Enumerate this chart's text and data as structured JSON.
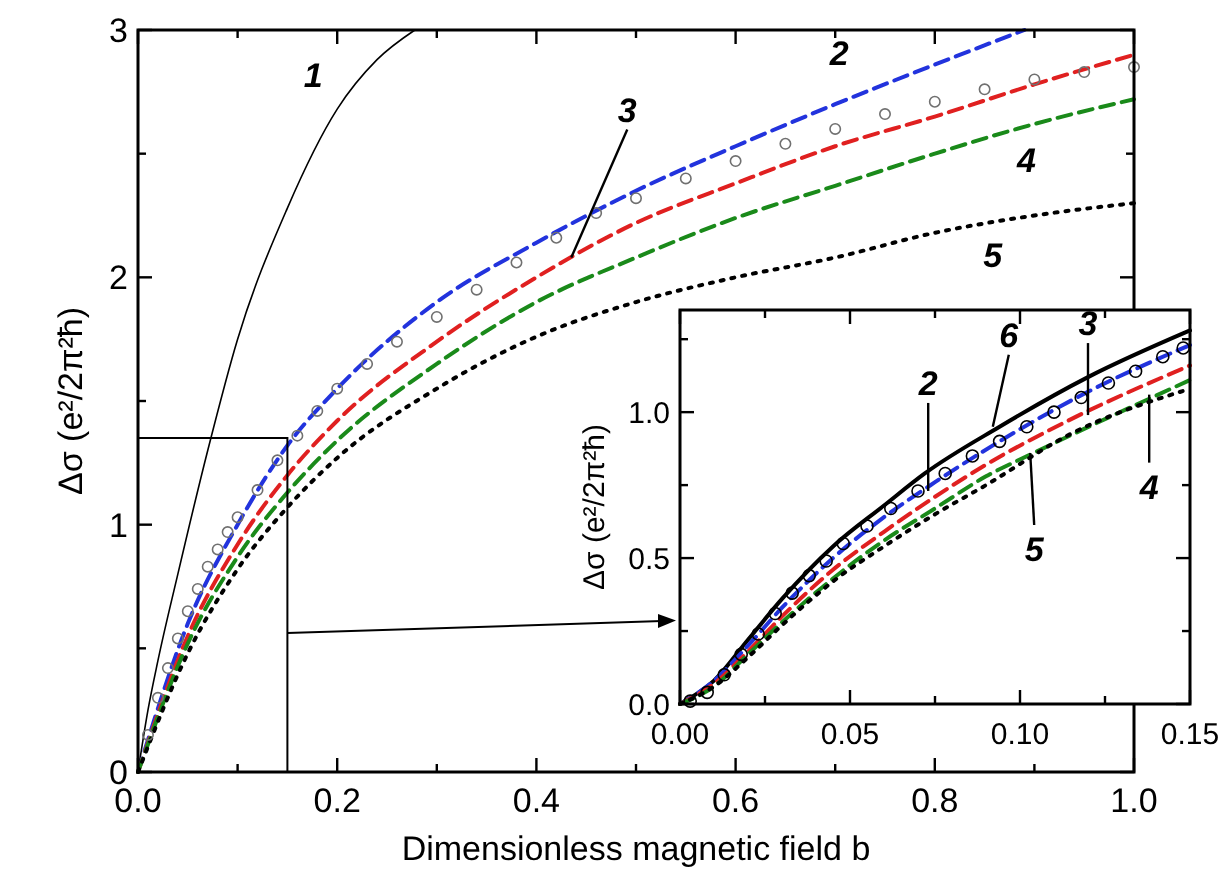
{
  "chart_data": [
    {
      "type": "line",
      "xlabel": "Dimensionless magnetic field  b",
      "ylabel": "Δσ (e²/2π²ħ)",
      "xlim": [
        0,
        1
      ],
      "ylim": [
        0,
        3
      ],
      "xticks": [
        {
          "value": 0,
          "label": "0.0"
        },
        {
          "value": 0.1,
          "label": null
        },
        {
          "value": 0.2,
          "label": "0.2"
        },
        {
          "value": 0.3,
          "label": null
        },
        {
          "value": 0.4,
          "label": "0.4"
        },
        {
          "value": 0.5,
          "label": null
        },
        {
          "value": 0.6,
          "label": "0.6"
        },
        {
          "value": 0.7,
          "label": null
        },
        {
          "value": 0.8,
          "label": "0.8"
        },
        {
          "value": 0.9,
          "label": null
        },
        {
          "value": 1,
          "label": "1.0"
        }
      ],
      "yticks": [
        0,
        {
          "value": 0.5,
          "label": null
        },
        1,
        {
          "value": 1.5,
          "label": null
        },
        2,
        {
          "value": 2.5,
          "label": null
        },
        3
      ],
      "series": [
        {
          "type": "line",
          "color": "#000000",
          "line_style": "solid",
          "x": [
            0,
            0.01,
            0.02,
            0.04,
            0.07,
            0.1,
            0.15,
            0.2,
            0.24,
            0.278
          ],
          "values": [
            0,
            0.25,
            0.45,
            0.8,
            1.3,
            1.75,
            2.28,
            2.68,
            2.88,
            3.0
          ]
        },
        {
          "type": "line",
          "color": "#2233dd",
          "line_style": "dashed",
          "x": [
            0,
            0.05,
            0.1,
            0.15,
            0.2,
            0.3,
            0.4,
            0.5,
            0.6,
            0.7,
            0.8,
            0.89
          ],
          "values": [
            0,
            0.6,
            1.0,
            1.32,
            1.55,
            1.9,
            2.14,
            2.35,
            2.53,
            2.7,
            2.86,
            3.0
          ]
        },
        {
          "type": "scatter",
          "color": "#707070",
          "marker": "circle",
          "x": [
            0.01,
            0.02,
            0.03,
            0.04,
            0.05,
            0.06,
            0.07,
            0.08,
            0.09,
            0.1,
            0.12,
            0.14,
            0.16,
            0.18,
            0.2,
            0.23,
            0.26,
            0.3,
            0.34,
            0.38,
            0.42,
            0.46,
            0.5,
            0.55,
            0.6,
            0.65,
            0.7,
            0.75,
            0.8,
            0.85,
            0.9,
            0.95,
            1.0
          ],
          "values": [
            0.15,
            0.3,
            0.42,
            0.54,
            0.65,
            0.74,
            0.83,
            0.9,
            0.97,
            1.03,
            1.14,
            1.26,
            1.36,
            1.46,
            1.55,
            1.65,
            1.74,
            1.84,
            1.95,
            2.06,
            2.16,
            2.26,
            2.32,
            2.4,
            2.47,
            2.54,
            2.6,
            2.66,
            2.71,
            2.76,
            2.8,
            2.83,
            2.85
          ]
        },
        {
          "type": "line",
          "color": "#e02020",
          "line_style": "dashed",
          "x": [
            0,
            0.05,
            0.1,
            0.15,
            0.2,
            0.3,
            0.4,
            0.5,
            0.6,
            0.7,
            0.8,
            0.9,
            1.0
          ],
          "values": [
            0,
            0.55,
            0.92,
            1.2,
            1.42,
            1.74,
            2.0,
            2.22,
            2.38,
            2.53,
            2.65,
            2.78,
            2.9
          ]
        },
        {
          "type": "line",
          "color": "#1a8a1a",
          "line_style": "dashed",
          "x": [
            0,
            0.05,
            0.1,
            0.15,
            0.2,
            0.3,
            0.4,
            0.5,
            0.6,
            0.7,
            0.8,
            0.9,
            1.0
          ],
          "values": [
            0,
            0.52,
            0.87,
            1.13,
            1.34,
            1.65,
            1.9,
            2.08,
            2.24,
            2.37,
            2.5,
            2.62,
            2.72
          ]
        },
        {
          "type": "line",
          "color": "#000000",
          "line_style": "dotted",
          "x": [
            0,
            0.05,
            0.1,
            0.15,
            0.2,
            0.3,
            0.4,
            0.5,
            0.6,
            0.7,
            0.8,
            0.9,
            1.0
          ],
          "values": [
            0,
            0.48,
            0.82,
            1.07,
            1.27,
            1.55,
            1.76,
            1.9,
            2.0,
            2.08,
            2.18,
            2.25,
            2.3
          ]
        }
      ],
      "annotations": [
        {
          "text": "1",
          "x": 0.2,
          "y": 2.72
        },
        {
          "text": "2",
          "x": 0.7,
          "y": 2.73
        },
        {
          "text": "3",
          "x": 0.435,
          "y": 2.08
        },
        {
          "text": "4",
          "x": 0.9,
          "y": 2.62
        },
        {
          "text": "5",
          "x": 0.85,
          "y": 2.22
        }
      ]
    },
    {
      "type": "line",
      "ylabel": "Δσ (e²/2π²ħ)",
      "xlim": [
        0,
        0.15
      ],
      "ylim": [
        0,
        1.35
      ],
      "xticks": [
        {
          "value": 0,
          "label": "0.00"
        },
        {
          "value": 0.025,
          "label": null
        },
        {
          "value": 0.05,
          "label": "0.05"
        },
        {
          "value": 0.075,
          "label": null
        },
        {
          "value": 0.1,
          "label": "0.10"
        },
        {
          "value": 0.125,
          "label": null
        },
        {
          "value": 0.15,
          "label": "0.15"
        }
      ],
      "yticks": [
        {
          "value": 0,
          "label": "0.0"
        },
        {
          "value": 0.25,
          "label": null
        },
        {
          "value": 0.5,
          "label": "0.5"
        },
        {
          "value": 0.75,
          "label": null
        },
        {
          "value": 1,
          "label": "1.0"
        },
        {
          "value": 1.25,
          "label": null
        }
      ],
      "series": [
        {
          "type": "line",
          "color": "#000000",
          "line_style": "solid",
          "x": [
            0,
            0.01,
            0.02,
            0.03,
            0.045,
            0.06,
            0.072,
            0.094,
            0.12,
            0.15
          ],
          "values": [
            0,
            0.08,
            0.22,
            0.36,
            0.54,
            0.68,
            0.79,
            0.95,
            1.12,
            1.28
          ]
        },
        {
          "type": "line",
          "color": "#2233dd",
          "line_style": "dashed",
          "x": [
            0,
            0.01,
            0.02,
            0.03,
            0.045,
            0.06,
            0.075,
            0.094,
            0.12,
            0.15
          ],
          "values": [
            0,
            0.08,
            0.2,
            0.33,
            0.5,
            0.64,
            0.76,
            0.9,
            1.07,
            1.23
          ]
        },
        {
          "type": "scatter",
          "color": "#000000",
          "marker": "circle",
          "x": [
            0.003,
            0.008,
            0.013,
            0.018,
            0.023,
            0.028,
            0.033,
            0.038,
            0.043,
            0.048,
            0.055,
            0.062,
            0.07,
            0.078,
            0.086,
            0.094,
            0.102,
            0.11,
            0.118,
            0.126,
            0.134,
            0.142,
            0.148
          ],
          "values": [
            0.01,
            0.04,
            0.1,
            0.17,
            0.24,
            0.31,
            0.38,
            0.44,
            0.49,
            0.55,
            0.61,
            0.67,
            0.73,
            0.79,
            0.85,
            0.9,
            0.95,
            1.0,
            1.05,
            1.1,
            1.14,
            1.19,
            1.22
          ]
        },
        {
          "type": "line",
          "color": "#e02020",
          "line_style": "dashed",
          "x": [
            0,
            0.01,
            0.02,
            0.03,
            0.045,
            0.06,
            0.075,
            0.09,
            0.114,
            0.15
          ],
          "values": [
            0,
            0.07,
            0.18,
            0.3,
            0.46,
            0.59,
            0.71,
            0.82,
            0.97,
            1.16
          ]
        },
        {
          "type": "line",
          "color": "#1a8a1a",
          "line_style": "dashed",
          "x": [
            0,
            0.01,
            0.02,
            0.03,
            0.045,
            0.06,
            0.075,
            0.09,
            0.104,
            0.15
          ],
          "values": [
            0,
            0.06,
            0.17,
            0.28,
            0.43,
            0.56,
            0.67,
            0.78,
            0.86,
            1.11
          ]
        },
        {
          "type": "line",
          "color": "#000000",
          "line_style": "dotted",
          "x": [
            0,
            0.01,
            0.02,
            0.03,
            0.045,
            0.06,
            0.075,
            0.09,
            0.114,
            0.15
          ],
          "values": [
            0,
            0.06,
            0.16,
            0.27,
            0.42,
            0.54,
            0.65,
            0.75,
            0.92,
            1.08
          ]
        }
      ],
      "annotations": [
        {
          "text": "2",
          "x": 0.073,
          "y": 0.73
        },
        {
          "text": "6",
          "x": 0.092,
          "y": 0.95
        },
        {
          "text": "3",
          "x": 0.12,
          "y": 0.99
        },
        {
          "text": "4",
          "x": 0.138,
          "y": 1.06
        },
        {
          "text": "5",
          "x": 0.103,
          "y": 0.86
        }
      ]
    }
  ]
}
